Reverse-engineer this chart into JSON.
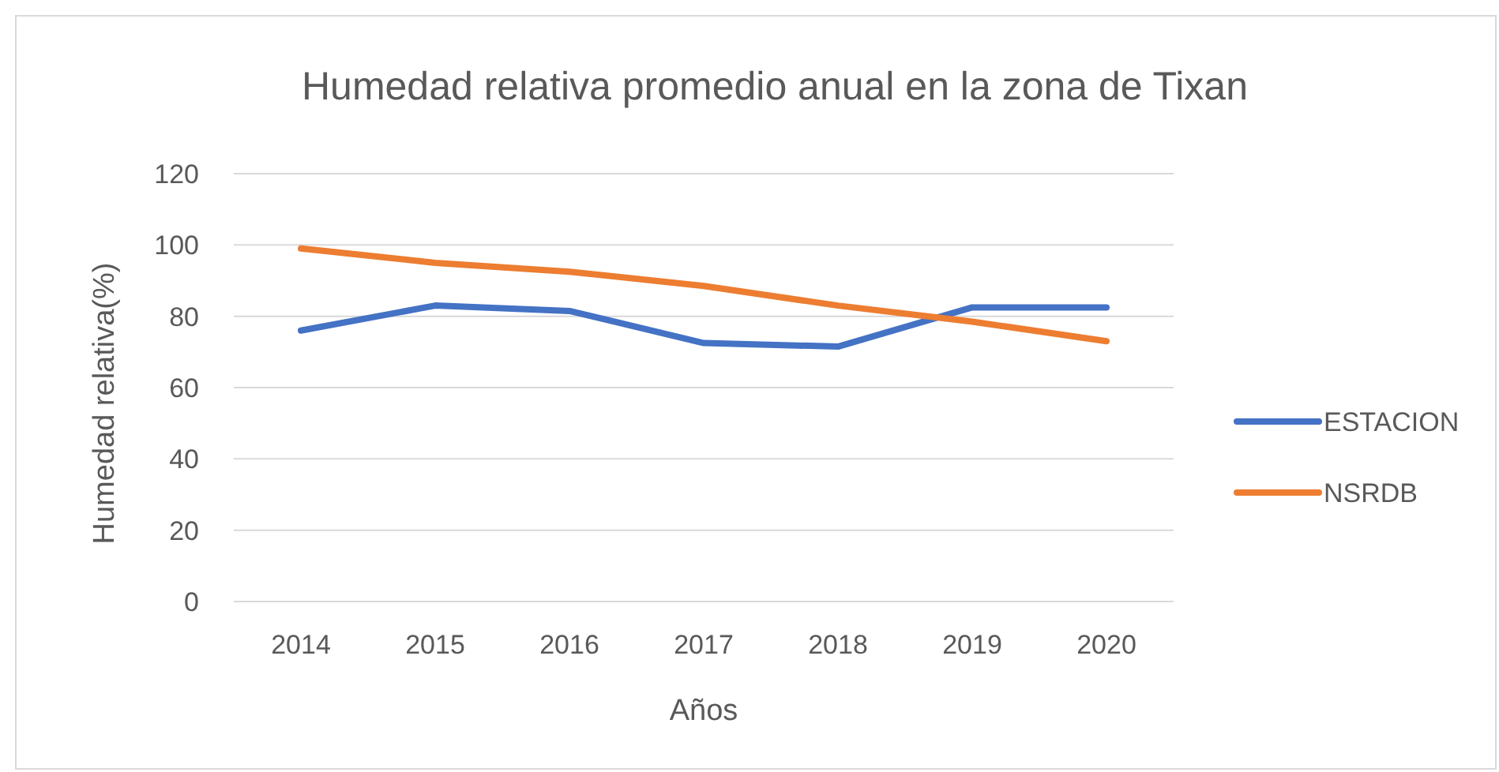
{
  "chart_data": {
    "type": "line",
    "title": "Humedad relativa promedio anual en la zona de Tixan",
    "xlabel": "Años",
    "ylabel": "Humedad relativa(%)",
    "categories": [
      "2014",
      "2015",
      "2016",
      "2017",
      "2018",
      "2019",
      "2020"
    ],
    "series": [
      {
        "name": "ESTACION",
        "color": "#4472c4",
        "values": [
          76,
          83,
          81.5,
          72.5,
          71.5,
          82.5,
          82.5
        ]
      },
      {
        "name": "NSRDB",
        "color": "#ed7d31",
        "values": [
          99,
          95,
          92.5,
          88.5,
          83,
          78.5,
          73
        ]
      }
    ],
    "ylim": [
      0,
      120
    ],
    "yticks": [
      0,
      20,
      40,
      60,
      80,
      100,
      120
    ],
    "grid": "y",
    "legend": "right",
    "marker": "none",
    "line_style": "solid"
  }
}
